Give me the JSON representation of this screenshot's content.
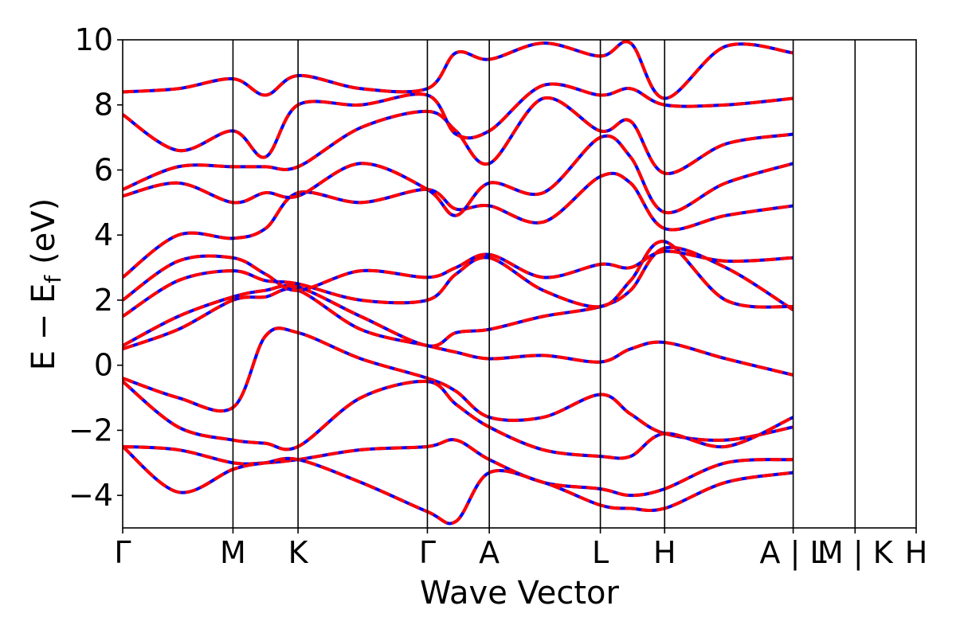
{
  "chart_data": {
    "type": "line",
    "title": "",
    "xlabel": "Wave Vector",
    "ylabel_main": "E − E",
    "ylabel_sub": "f",
    "ylabel_unit": "(eV)",
    "ylim": [
      -5,
      10
    ],
    "yticks": [
      -4,
      -2,
      0,
      2,
      4,
      6,
      8,
      10
    ],
    "ytick_labels": [
      "−4",
      "−2",
      "0",
      "2",
      "4",
      "6",
      "8",
      "10"
    ],
    "kpoints": [
      {
        "label": "Γ",
        "x": 0.0
      },
      {
        "label": "M",
        "x": 0.139
      },
      {
        "label": "K",
        "x": 0.221
      },
      {
        "label": "Γ",
        "x": 0.384
      },
      {
        "label": "A",
        "x": 0.462
      },
      {
        "label": "L",
        "x": 0.602
      },
      {
        "label": "H",
        "x": 0.683
      },
      {
        "label": "A | L",
        "x": 0.845
      },
      {
        "label": "M | K",
        "x": 0.923
      },
      {
        "label": "H",
        "x": 1.0
      }
    ],
    "xlim": [
      0,
      1
    ],
    "grid": false,
    "legend": "none",
    "series_colors": {
      "dft": "#0000ff",
      "fit": "#ff0000"
    },
    "series": [
      {
        "x": [
          0.0,
          0.07,
          0.139,
          0.18,
          0.221,
          0.3,
          0.384,
          0.42,
          0.462,
          0.53,
          0.602,
          0.64,
          0.683,
          0.76,
          0.845
        ],
        "values": [
          -0.4,
          -1.0,
          -1.3,
          0.9,
          1.0,
          0.2,
          -0.4,
          -0.8,
          -1.6,
          -1.6,
          -0.9,
          -1.5,
          -2.1,
          -2.3,
          -1.9
        ]
      },
      {
        "x": [
          0.0,
          0.07,
          0.139,
          0.18,
          0.221,
          0.3,
          0.384,
          0.42,
          0.462,
          0.53,
          0.602,
          0.64,
          0.683,
          0.76,
          0.845
        ],
        "values": [
          -0.5,
          -1.9,
          -2.3,
          -2.4,
          -2.5,
          -1.0,
          -0.5,
          -1.2,
          -1.9,
          -2.6,
          -2.8,
          -2.8,
          -2.1,
          -2.5,
          -1.6
        ]
      },
      {
        "x": [
          0.0,
          0.07,
          0.139,
          0.18,
          0.221,
          0.3,
          0.384,
          0.42,
          0.462,
          0.53,
          0.602,
          0.64,
          0.683,
          0.76,
          0.845
        ],
        "values": [
          -2.5,
          -2.6,
          -3.0,
          -3.0,
          -2.9,
          -2.6,
          -2.5,
          -2.3,
          -2.9,
          -3.6,
          -3.8,
          -4.0,
          -3.8,
          -3.0,
          -2.9
        ]
      },
      {
        "x": [
          0.0,
          0.07,
          0.139,
          0.18,
          0.221,
          0.3,
          0.384,
          0.42,
          0.462,
          0.53,
          0.602,
          0.64,
          0.683,
          0.76,
          0.845
        ],
        "values": [
          -2.5,
          -3.9,
          -3.2,
          -3.0,
          -2.9,
          -3.6,
          -4.5,
          -4.8,
          -3.3,
          -3.6,
          -4.3,
          -4.4,
          -4.4,
          -3.6,
          -3.3
        ]
      },
      {
        "x": [
          0.0,
          0.07,
          0.139,
          0.18,
          0.221,
          0.3,
          0.384,
          0.42,
          0.462,
          0.53,
          0.602,
          0.64,
          0.683,
          0.76,
          0.845
        ],
        "values": [
          0.5,
          1.1,
          2.0,
          2.1,
          2.3,
          1.1,
          0.6,
          0.4,
          0.2,
          0.3,
          0.1,
          0.5,
          0.7,
          0.2,
          -0.3
        ]
      },
      {
        "x": [
          0.0,
          0.07,
          0.139,
          0.18,
          0.221,
          0.3,
          0.384,
          0.42,
          0.462,
          0.53,
          0.602,
          0.64,
          0.683,
          0.76,
          0.845
        ],
        "values": [
          0.6,
          1.5,
          2.1,
          2.3,
          2.4,
          1.5,
          0.6,
          1.0,
          1.1,
          1.5,
          1.8,
          2.3,
          3.6,
          3.0,
          1.7
        ]
      },
      {
        "x": [
          0.0,
          0.07,
          0.139,
          0.18,
          0.221,
          0.3,
          0.384,
          0.42,
          0.462,
          0.53,
          0.602,
          0.64,
          0.683,
          0.76,
          0.845
        ],
        "values": [
          1.5,
          2.6,
          2.9,
          2.6,
          2.5,
          2.0,
          2.0,
          2.8,
          3.3,
          2.3,
          1.8,
          2.6,
          3.8,
          2.0,
          1.8
        ]
      },
      {
        "x": [
          0.0,
          0.07,
          0.139,
          0.18,
          0.221,
          0.3,
          0.384,
          0.42,
          0.462,
          0.53,
          0.602,
          0.64,
          0.683,
          0.76,
          0.845
        ],
        "values": [
          2.0,
          3.2,
          3.3,
          2.8,
          2.3,
          2.9,
          2.7,
          3.0,
          3.4,
          2.7,
          3.1,
          3.0,
          3.5,
          3.2,
          3.3
        ]
      },
      {
        "x": [
          0.0,
          0.07,
          0.139,
          0.18,
          0.221,
          0.3,
          0.384,
          0.42,
          0.462,
          0.53,
          0.602,
          0.64,
          0.683,
          0.76,
          0.845
        ],
        "values": [
          2.7,
          4.0,
          3.9,
          4.2,
          5.3,
          5.0,
          5.4,
          4.8,
          4.9,
          4.4,
          5.8,
          5.6,
          4.2,
          4.6,
          4.9
        ]
      },
      {
        "x": [
          0.0,
          0.07,
          0.139,
          0.18,
          0.221,
          0.3,
          0.384,
          0.42,
          0.462,
          0.53,
          0.602,
          0.64,
          0.683,
          0.76,
          0.845
        ],
        "values": [
          5.2,
          5.6,
          5.0,
          5.3,
          5.2,
          6.2,
          5.4,
          4.6,
          5.6,
          5.3,
          7.0,
          6.4,
          4.7,
          5.6,
          6.2
        ]
      },
      {
        "x": [
          0.0,
          0.07,
          0.139,
          0.18,
          0.221,
          0.3,
          0.384,
          0.42,
          0.462,
          0.53,
          0.602,
          0.64,
          0.683,
          0.76,
          0.845
        ],
        "values": [
          5.4,
          6.1,
          6.1,
          6.1,
          6.1,
          7.3,
          7.8,
          7.2,
          6.2,
          8.2,
          7.2,
          7.5,
          5.9,
          6.8,
          7.1
        ]
      },
      {
        "x": [
          0.0,
          0.07,
          0.139,
          0.18,
          0.221,
          0.3,
          0.384,
          0.42,
          0.462,
          0.53,
          0.602,
          0.64,
          0.683,
          0.76,
          0.845
        ],
        "values": [
          7.7,
          6.6,
          7.2,
          6.4,
          8.0,
          8.0,
          8.3,
          7.1,
          7.2,
          8.6,
          8.3,
          8.5,
          8.0,
          8.0,
          8.2
        ]
      },
      {
        "x": [
          0.0,
          0.07,
          0.139,
          0.18,
          0.221,
          0.3,
          0.384,
          0.42,
          0.462,
          0.53,
          0.602,
          0.64,
          0.683,
          0.76,
          0.845
        ],
        "values": [
          8.4,
          8.5,
          8.8,
          8.3,
          8.9,
          8.5,
          8.5,
          9.6,
          9.4,
          9.9,
          9.5,
          9.9,
          8.2,
          9.8,
          9.6
        ]
      }
    ]
  }
}
